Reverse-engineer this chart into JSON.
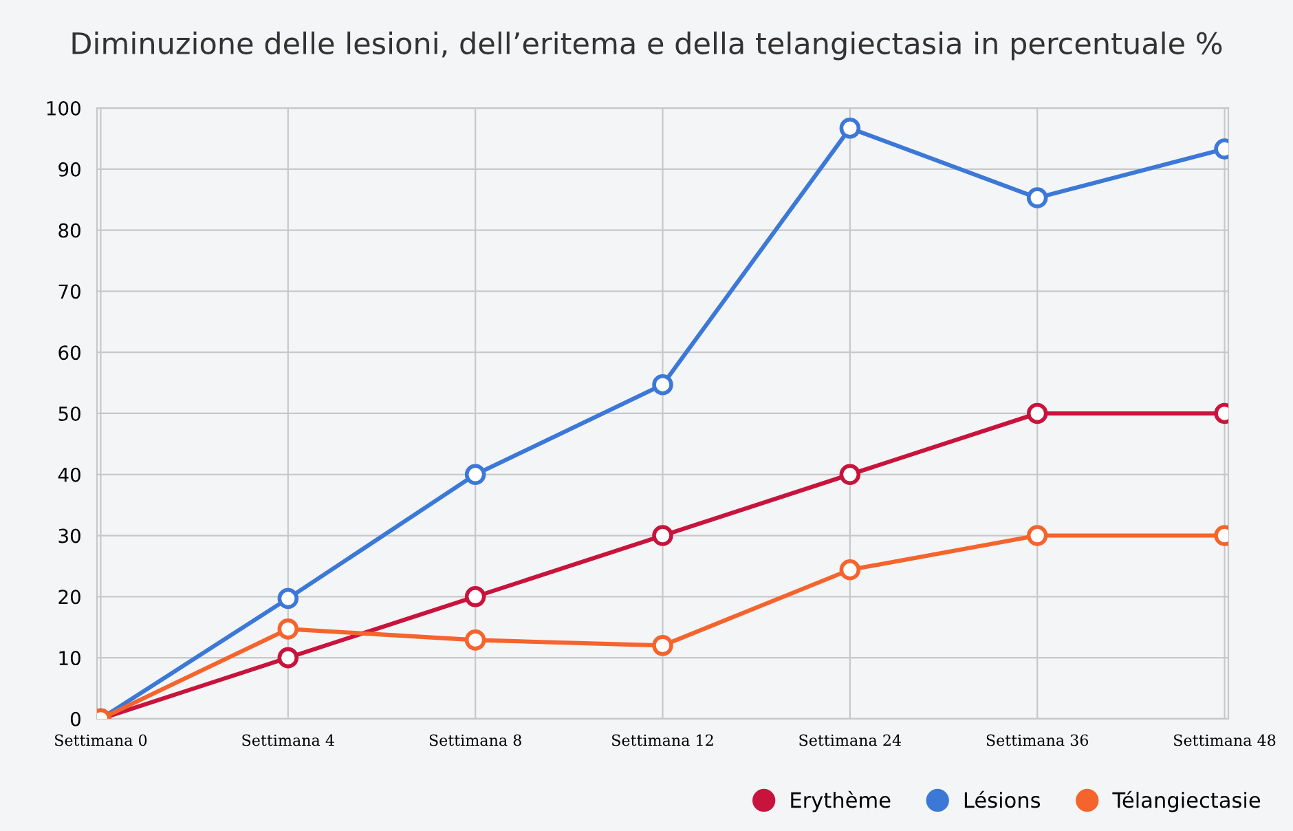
{
  "chart_data": {
    "type": "line",
    "title": "Diminuzione delle lesioni, dell’eritema e della telangiectasia in percentuale %",
    "categories": [
      "Settimana 0",
      "Settimana 4",
      "Settimana 8",
      "Settimana 12",
      "Settimana 24",
      "Settimana 36",
      "Settimana 48"
    ],
    "series": [
      {
        "name": "Erythème",
        "color": "#c8143c",
        "values": [
          0,
          10,
          20,
          30,
          40,
          50,
          50
        ]
      },
      {
        "name": "Lésions",
        "color": "#3c78d8",
        "values": [
          0,
          19.7,
          40,
          54.7,
          96.7,
          85.3,
          93.3
        ]
      },
      {
        "name": "Télangiectasie",
        "color": "#f5642d",
        "values": [
          0,
          14.7,
          12.9,
          12,
          24.4,
          30,
          30
        ]
      }
    ],
    "ylim": [
      0,
      100
    ],
    "yticks": [
      0,
      10,
      20,
      30,
      40,
      50,
      60,
      70,
      80,
      90,
      100
    ],
    "grid": true,
    "legend": "bottom right",
    "marker": "circle",
    "line_style": "solid"
  }
}
